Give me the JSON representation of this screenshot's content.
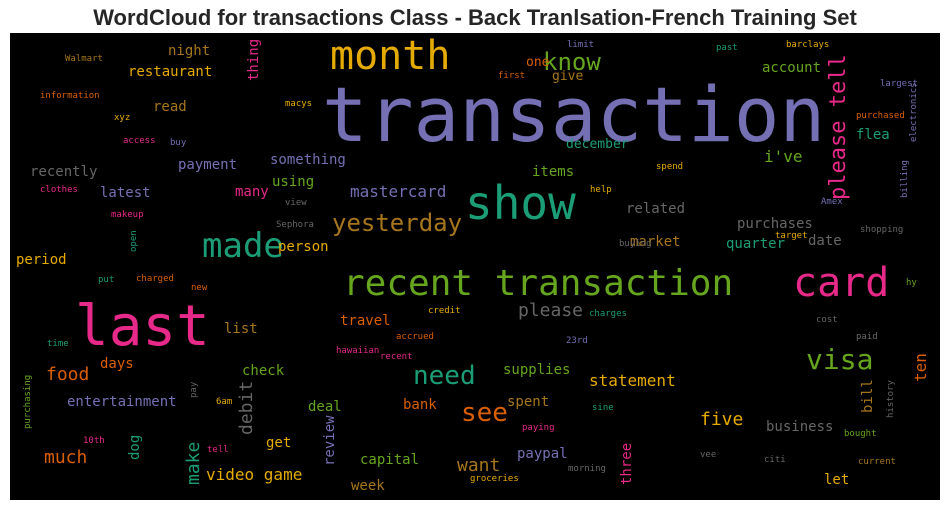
{
  "title": "WordCloud for transactions Class - Back Tranlsation-French Training Set",
  "palette": {
    "purple": "#7570b3",
    "green": "#1b9e77",
    "orange": "#d95f02",
    "magenta": "#e7298a",
    "lime": "#66a61e",
    "gold": "#e6ab02",
    "brown": "#a6761d",
    "gray": "#666666",
    "background": "#000000"
  },
  "words": {
    "transaction": "transaction",
    "month": "month",
    "show": "show",
    "know": "know",
    "please_tell": "please tell",
    "made": "made",
    "yesterday": "yesterday",
    "recent_transaction": "recent transaction",
    "card": "card",
    "last": "last",
    "visa": "visa",
    "need": "need",
    "see": "see",
    "night": "night",
    "restaurant": "restaurant",
    "thing": "thing",
    "one": "one",
    "give": "give",
    "account": "account",
    "flea": "flea",
    "read": "read",
    "ive": "i've",
    "december": "december",
    "recently": "recently",
    "payment": "payment",
    "something": "something",
    "items": "items",
    "latest": "latest",
    "using": "using",
    "mastercard": "mastercard",
    "many": "many",
    "related": "related",
    "purchases": "purchases",
    "date": "date",
    "quarter": "quarter",
    "market": "market",
    "person": "person",
    "period": "period",
    "please": "please",
    "travel": "travel",
    "list": "list",
    "days": "days",
    "food": "food",
    "check": "check",
    "supplies": "supplies",
    "statement": "statement",
    "entertainment": "entertainment",
    "debit": "debit",
    "deal": "deal",
    "bank": "bank",
    "spent": "spent",
    "five": "five",
    "business": "business",
    "review": "review",
    "bill": "bill",
    "ten": "ten",
    "make": "make",
    "dog": "dog",
    "get": "get",
    "much": "much",
    "video_game": "video game",
    "capital": "capital",
    "want": "want",
    "paypal": "paypal",
    "three": "three",
    "week": "week",
    "let": "let",
    "walmart": "Walmart",
    "information": "information",
    "xyz": "xyz",
    "access": "access",
    "buy": "buy",
    "clothes": "clothes",
    "makeup": "makeup",
    "open": "open",
    "put": "put",
    "charged": "charged",
    "new": "new",
    "time": "time",
    "purchasing": "purchasing",
    "tenth": "10th",
    "tell": "tell",
    "pay": "pay",
    "six_am": "6am",
    "hawaiian": "hawaiian",
    "recent": "recent",
    "accrued": "accrued",
    "credit": "credit",
    "charges": "charges",
    "twenty_third": "23rd",
    "sine": "sine",
    "paying": "paying",
    "morning": "morning",
    "groceries": "groceries",
    "vee": "vee",
    "citi": "citi",
    "current": "current",
    "bought": "bought",
    "history": "history",
    "cost": "cost",
    "paid": "paid",
    "hy": "hy",
    "target": "target",
    "shopping": "shopping",
    "amex": "Amex",
    "billing": "billing",
    "electronics": "electronics",
    "purchased": "purchased",
    "largest": "largest",
    "barclays": "barclays",
    "past": "past",
    "limit": "limit",
    "first": "first",
    "spend": "spend",
    "help": "help",
    "buying": "buying",
    "view": "view",
    "sephora": "Sephora",
    "macys": "macys"
  }
}
